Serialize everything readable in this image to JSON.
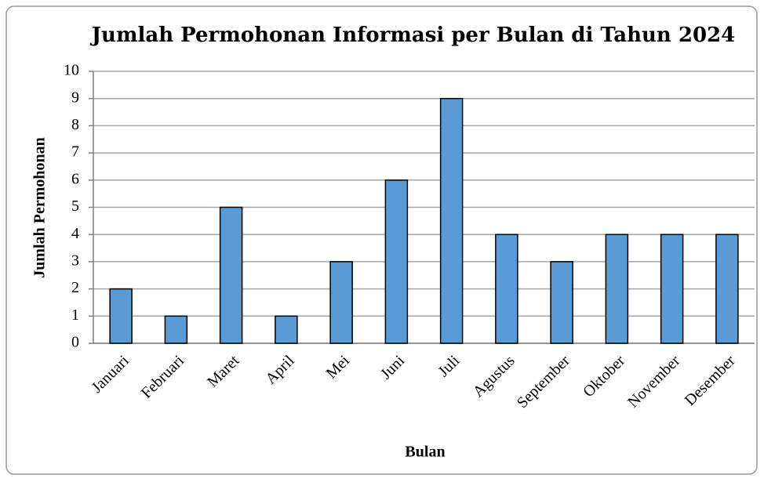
{
  "chart_data": {
    "type": "bar",
    "title": "Jumlah Permohonan Informasi per Bulan di Tahun 2024",
    "x_label": "Bulan",
    "y_label": "Jumlah Permohonan",
    "categories": [
      "Januari",
      "Februari",
      "Maret",
      "April",
      "Mei",
      "Juni",
      "Juli",
      "Agustus",
      "September",
      "Oktober",
      "November",
      "Desember"
    ],
    "values": [
      2,
      1,
      5,
      1,
      3,
      6,
      9,
      4,
      3,
      4,
      4,
      4
    ],
    "color": "#5b9bd5",
    "ylim": [
      0,
      10
    ],
    "yticks": [
      0,
      1,
      2,
      3,
      4,
      5,
      6,
      7,
      8,
      9,
      10
    ],
    "grid": true
  }
}
